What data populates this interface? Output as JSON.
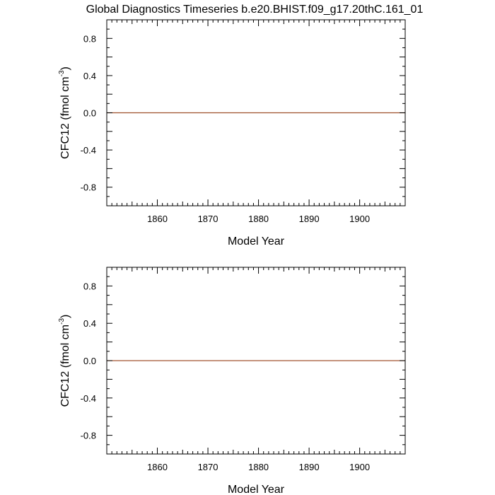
{
  "title": "Global Diagnostics Timeseries b.e20.BHIST.f09_g17.20thC.161_01",
  "chart_data": [
    {
      "type": "line",
      "xlabel": "Model Year",
      "ylabel": {
        "main": "CFC12 (fmol cm",
        "sup": "-3",
        "close": ")"
      },
      "xlim": [
        1850,
        1909
      ],
      "ylim": [
        -1.0,
        1.0
      ],
      "xticks": [
        1860,
        1870,
        1880,
        1890,
        1900
      ],
      "yticks": [
        0.8,
        0.4,
        0.0,
        -0.4,
        -0.8
      ],
      "ytick_labels": [
        "0.8",
        "0.4",
        "0.0",
        "-0.4",
        "-0.8"
      ],
      "zero_line": true,
      "series": [
        {
          "x": [
            1850,
            1909
          ],
          "y": [
            0.0,
            0.0
          ],
          "color": "#a0522d"
        }
      ]
    },
    {
      "type": "line",
      "xlabel": "Model Year",
      "ylabel": {
        "main": "CFC12 (fmol cm",
        "sup": "-3",
        "close": ")"
      },
      "xlim": [
        1850,
        1909
      ],
      "ylim": [
        -1.0,
        1.0
      ],
      "xticks": [
        1860,
        1870,
        1880,
        1890,
        1900
      ],
      "yticks": [
        0.8,
        0.4,
        0.0,
        -0.4,
        -0.8
      ],
      "ytick_labels": [
        "0.8",
        "0.4",
        "0.0",
        "-0.4",
        "-0.8"
      ],
      "zero_line": true,
      "series": [
        {
          "x": [
            1850,
            1909
          ],
          "y": [
            0.0,
            0.0
          ],
          "color": "#a0522d"
        }
      ]
    }
  ]
}
